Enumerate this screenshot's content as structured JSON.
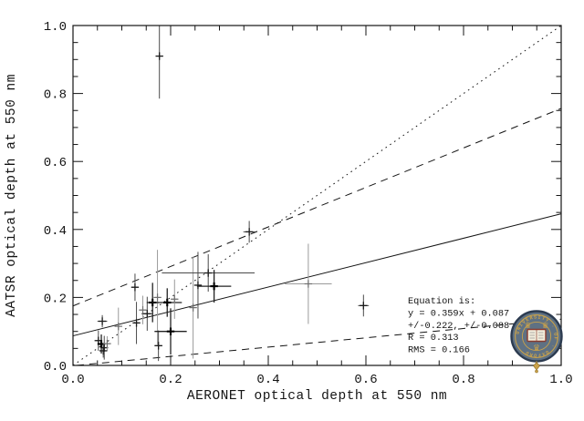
{
  "figure": {
    "background": "#ffffff",
    "axis_color": "#141414"
  },
  "chart_data": {
    "type": "scatter",
    "title": "",
    "xlabel": "AERONET optical depth at 550 nm",
    "ylabel": "AATSR optical depth at 550 nm",
    "xlim": [
      0.0,
      1.0
    ],
    "ylim": [
      0.0,
      1.0
    ],
    "xticks": [
      "0.0",
      "0.2",
      "0.4",
      "0.6",
      "0.8",
      "1.0"
    ],
    "yticks": [
      "0.0",
      "0.2",
      "0.4",
      "0.6",
      "0.8",
      "1.0"
    ],
    "minor_tick_interval": 0.05,
    "grid": false,
    "legend": "none",
    "lines": [
      {
        "name": "linear-fit",
        "style": "solid",
        "slope": 0.359,
        "intercept": 0.087
      },
      {
        "name": "fit-upper-bound",
        "style": "dashed",
        "slope": 0.581,
        "intercept": 0.175
      },
      {
        "name": "fit-lower-bound",
        "style": "dashed",
        "slope": 0.137,
        "intercept": -0.001
      },
      {
        "name": "one-to-one-line",
        "style": "dotted",
        "slope": 1.0,
        "intercept": 0.0
      }
    ],
    "points": [
      {
        "x": 0.06,
        "y": 0.13,
        "xerr": 0.01,
        "yerr": 0.018,
        "weight": "normal"
      },
      {
        "x": 0.052,
        "y": 0.073,
        "xerr": 0.005,
        "yerr": 0.03,
        "weight": "normal"
      },
      {
        "x": 0.058,
        "y": 0.063,
        "xerr": 0.005,
        "yerr": 0.028,
        "weight": "bold"
      },
      {
        "x": 0.064,
        "y": 0.052,
        "xerr": 0.007,
        "yerr": 0.035,
        "weight": "normal"
      },
      {
        "x": 0.07,
        "y": 0.064,
        "xerr": 0.007,
        "yerr": 0.022,
        "weight": "light"
      },
      {
        "x": 0.062,
        "y": 0.043,
        "xerr": 0.005,
        "yerr": 0.02,
        "weight": "normal"
      },
      {
        "x": 0.093,
        "y": 0.115,
        "xerr": 0.005,
        "yerr": 0.055,
        "weight": "light"
      },
      {
        "x": 0.13,
        "y": 0.125,
        "xerr": 0.005,
        "yerr": 0.062,
        "weight": "normal"
      },
      {
        "x": 0.127,
        "y": 0.23,
        "xerr": 0.007,
        "yerr": 0.04,
        "weight": "normal"
      },
      {
        "x": 0.143,
        "y": 0.163,
        "xerr": 0.007,
        "yerr": 0.042,
        "weight": "light"
      },
      {
        "x": 0.152,
        "y": 0.152,
        "xerr": 0.012,
        "yerr": 0.05,
        "weight": "normal"
      },
      {
        "x": 0.163,
        "y": 0.185,
        "xerr": 0.012,
        "yerr": 0.058,
        "weight": "bold"
      },
      {
        "x": 0.177,
        "y": 0.91,
        "xerr": 0.006,
        "yerr": 0.125,
        "weight": "normal"
      },
      {
        "x": 0.175,
        "y": 0.058,
        "xerr": 0.008,
        "yerr": 0.045,
        "weight": "normal"
      },
      {
        "x": 0.173,
        "y": 0.2,
        "xerr": 0.005,
        "yerr": 0.14,
        "weight": "light"
      },
      {
        "x": 0.193,
        "y": 0.185,
        "xerr": 0.03,
        "yerr": 0.042,
        "weight": "bold"
      },
      {
        "x": 0.2,
        "y": 0.1,
        "xerr": 0.033,
        "yerr": 0.068,
        "weight": "bold"
      },
      {
        "x": 0.208,
        "y": 0.195,
        "xerr": 0.006,
        "yerr": 0.058,
        "weight": "light"
      },
      {
        "x": 0.246,
        "y": 0.17,
        "xerr": 0.006,
        "yerr": 0.15,
        "weight": "light"
      },
      {
        "x": 0.256,
        "y": 0.236,
        "xerr": 0.006,
        "yerr": 0.098,
        "weight": "normal"
      },
      {
        "x": 0.277,
        "y": 0.272,
        "xerr": 0.095,
        "yerr": 0.055,
        "weight": "normal"
      },
      {
        "x": 0.289,
        "y": 0.233,
        "xerr": 0.035,
        "yerr": 0.048,
        "weight": "bold"
      },
      {
        "x": 0.361,
        "y": 0.393,
        "xerr": 0.012,
        "yerr": 0.032,
        "weight": "normal"
      },
      {
        "x": 0.482,
        "y": 0.24,
        "xerr": 0.048,
        "yerr": 0.118,
        "weight": "light"
      },
      {
        "x": 0.595,
        "y": 0.176,
        "xerr": 0.011,
        "yerr": 0.032,
        "weight": "normal"
      }
    ],
    "annotation": {
      "lines": [
        "Equation is:",
        "y = 0.359x + 0.087",
        "+/-0.222, +/-0.088",
        "R = 0.313",
        "RMS = 0.166"
      ]
    }
  },
  "logo": {
    "institution": "University of Oxford crest",
    "ring_text": "UNIVERSITY · OF · OXFORD",
    "crown_glyph": "♛",
    "colors": {
      "shield": "#5f7183",
      "outline": "#2c3b50",
      "gold": "#c9a24b",
      "gold_dark": "#8a6a20",
      "book": "#f3eedd",
      "book_border": "#8a3b2e"
    }
  }
}
